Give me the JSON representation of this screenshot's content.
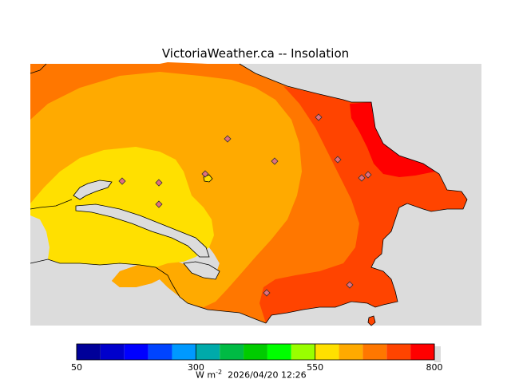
{
  "title": "VictoriaWeather.ca -- Insolation",
  "caption": {
    "unit_base": "W m",
    "unit_exp": "-2",
    "timestamp": "2026/04/20 12:26"
  },
  "legend": {
    "min": 50,
    "max": 800,
    "tick_labels": [
      "50",
      "300",
      "550",
      "800"
    ],
    "tick_values": [
      50,
      300,
      550,
      800
    ],
    "bins": [
      {
        "from": 50,
        "to": 100,
        "color": "#000099"
      },
      {
        "from": 100,
        "to": 150,
        "color": "#0000cc"
      },
      {
        "from": 150,
        "to": 200,
        "color": "#0000ff"
      },
      {
        "from": 200,
        "to": 250,
        "color": "#0044ff"
      },
      {
        "from": 250,
        "to": 300,
        "color": "#0099ff"
      },
      {
        "from": 300,
        "to": 350,
        "color": "#00aaaa"
      },
      {
        "from": 350,
        "to": 400,
        "color": "#00bb44"
      },
      {
        "from": 400,
        "to": 450,
        "color": "#00cc00"
      },
      {
        "from": 450,
        "to": 500,
        "color": "#00ff00"
      },
      {
        "from": 500,
        "to": 550,
        "color": "#99ff00"
      },
      {
        "from": 550,
        "to": 600,
        "color": "#ffe000"
      },
      {
        "from": 600,
        "to": 650,
        "color": "#ffaa00"
      },
      {
        "from": 650,
        "to": 700,
        "color": "#ff7700"
      },
      {
        "from": 700,
        "to": 750,
        "color": "#ff4400"
      },
      {
        "from": 750,
        "to": 800,
        "color": "#ff0000"
      }
    ]
  },
  "colors": {
    "no_data": "#dcdcdc",
    "band_600": "#ffaa00",
    "band_650": "#ff7700",
    "band_550": "#ffe000",
    "band_700": "#ff4400",
    "band_750": "#ff0000",
    "station_marker": "#e07080"
  },
  "stations_count_label": ""
}
